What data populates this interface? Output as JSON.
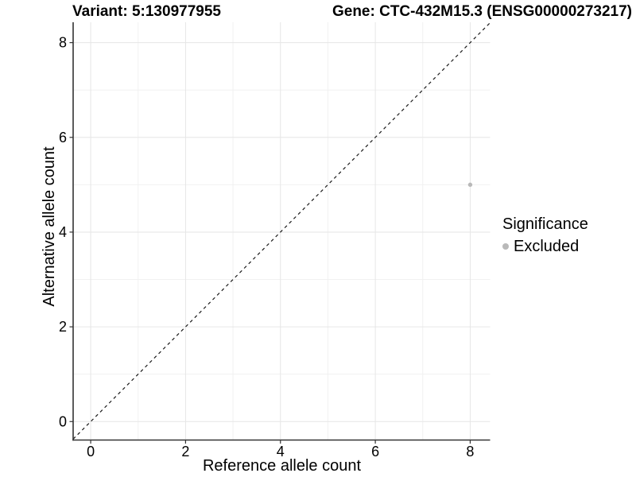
{
  "header": {
    "variant_title": "Variant: 5:130977955",
    "gene_title": "Gene: CTC-432M15.3 (ENSG00000273217)"
  },
  "chart_data": {
    "type": "scatter",
    "xlabel": "Reference allele count",
    "ylabel": "Alternative allele count",
    "xlim": [
      -0.37,
      8.42
    ],
    "ylim": [
      -0.39,
      8.43
    ],
    "x_major_ticks": [
      0,
      2,
      4,
      6,
      8
    ],
    "y_major_ticks": [
      0,
      2,
      4,
      6,
      8
    ],
    "x_minor_gridlines": [
      1,
      3,
      5,
      7
    ],
    "y_minor_gridlines": [
      1,
      3,
      5,
      7
    ],
    "grid": true,
    "points": [
      {
        "x": 8,
        "y": 5,
        "series": "Excluded"
      }
    ],
    "reference_line": {
      "slope": 1,
      "intercept": 0,
      "linetype": "dashed"
    },
    "legend": {
      "title": "Significance",
      "position": "right",
      "items": [
        {
          "label": "Excluded",
          "color": "#b9b9b9"
        }
      ]
    },
    "colors": {
      "point": "#b9b9b9",
      "grid_major": "#e6e6e6",
      "grid_minor": "#f1f1f1",
      "axis_line": "#333333",
      "tick_mark": "#333333",
      "tick_text": "#000000",
      "reference_line": "#1a1a1a",
      "background": "#ffffff"
    }
  }
}
